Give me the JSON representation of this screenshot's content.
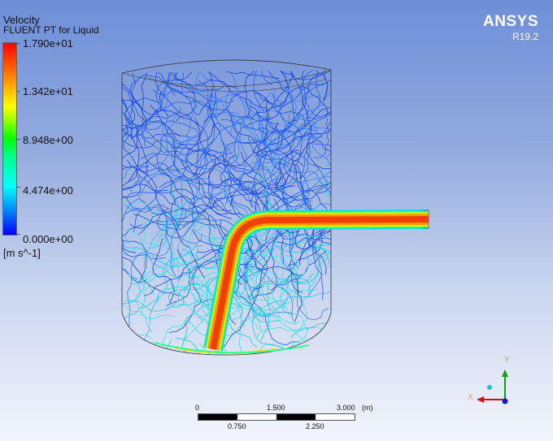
{
  "legend": {
    "variable": "Velocity",
    "subtitle": "FLUENT PT for Liquid",
    "ticks": [
      "1.790e+01",
      "1.342e+01",
      "8.948e+00",
      "4.474e+00",
      "0.000e+00"
    ],
    "units": "[m s^-1]",
    "range": [
      0,
      17.9
    ],
    "colormap": [
      "#ff0000",
      "#ffff00",
      "#00ff00",
      "#00ffff",
      "#0000ff"
    ]
  },
  "branding": {
    "name": "ANSYS",
    "version": "R19.2"
  },
  "scale_bar": {
    "top_labels": [
      "0",
      "1.500",
      "3.000"
    ],
    "unit": "(m)",
    "bottom_labels": [
      "0.750",
      "2.250"
    ]
  },
  "axes_triad": {
    "x_label": "X",
    "y_label": "Y",
    "x_color": "#d01010",
    "y_color": "#10a010",
    "z_color": "#1010e0"
  }
}
